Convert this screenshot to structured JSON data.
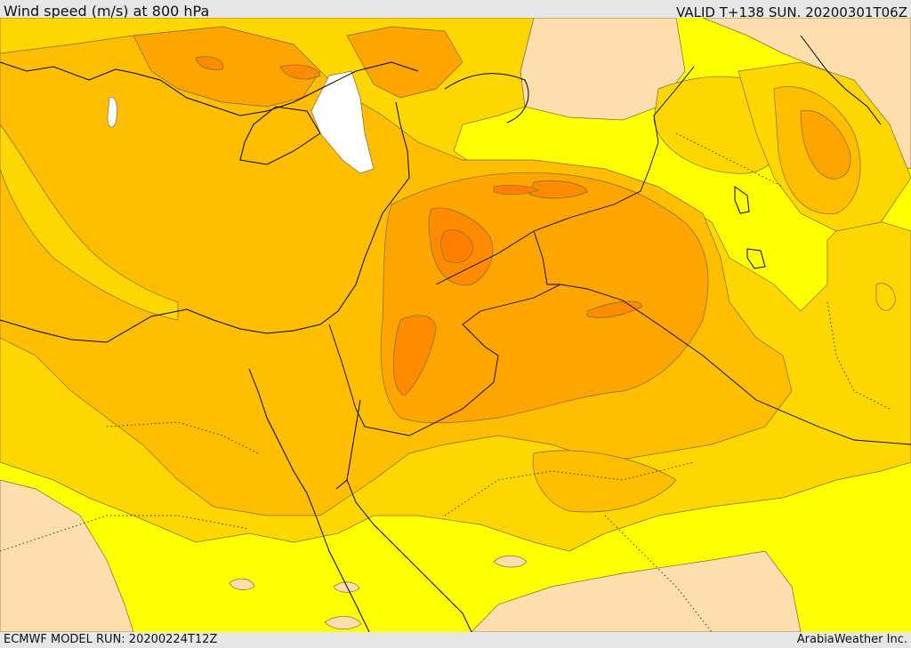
{
  "header": {
    "title": "Wind speed (m/s) at 800 hPa",
    "valid": "VALID T+138 SUN. 20200301T06Z"
  },
  "footer": {
    "model_run": "ECMWF MODEL RUN: 20200224T12Z",
    "credit": "ArabiaWeather Inc."
  },
  "colors": {
    "lowest": "#ffdead",
    "yellow": "#ffff00",
    "gold": "#ffd700",
    "amber": "#ffbf00",
    "orange": "#ffa500",
    "dark_orange": "#ff8c00",
    "deep_orange": "#ff7f00",
    "calm": "#ffffff"
  }
}
